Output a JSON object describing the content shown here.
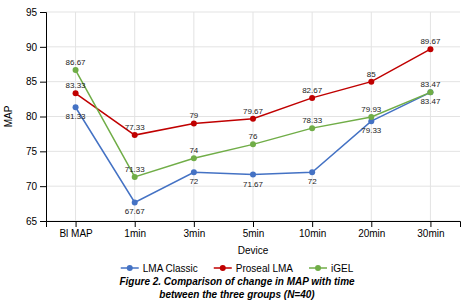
{
  "chart_data": {
    "type": "line",
    "title": "Figure 2. Comparison of change in MAP with time",
    "subtitle": "between the three groups (N=40)",
    "xlabel": "Device",
    "ylabel": "MAP",
    "categories": [
      "Bl MAP",
      "1min",
      "3min",
      "5min",
      "10min",
      "20min",
      "30min"
    ],
    "series": [
      {
        "name": "LMA Classic",
        "color": "#4472c4",
        "values": [
          81.33,
          67.67,
          72,
          71.67,
          72,
          79.33,
          83.47
        ]
      },
      {
        "name": "Proseal LMA",
        "color": "#c00000",
        "values": [
          83.33,
          77.33,
          79,
          79.67,
          82.67,
          85,
          89.67
        ]
      },
      {
        "name": "iGEL",
        "color": "#70ad47",
        "values": [
          86.67,
          71.33,
          74,
          76,
          78.33,
          79.93,
          83.47
        ]
      }
    ],
    "ylim": [
      65,
      95
    ],
    "yticks": [
      65,
      70,
      75,
      80,
      85,
      90,
      95
    ],
    "grid": true,
    "legend": "bottom",
    "data_labels": true,
    "marker": "circle"
  }
}
